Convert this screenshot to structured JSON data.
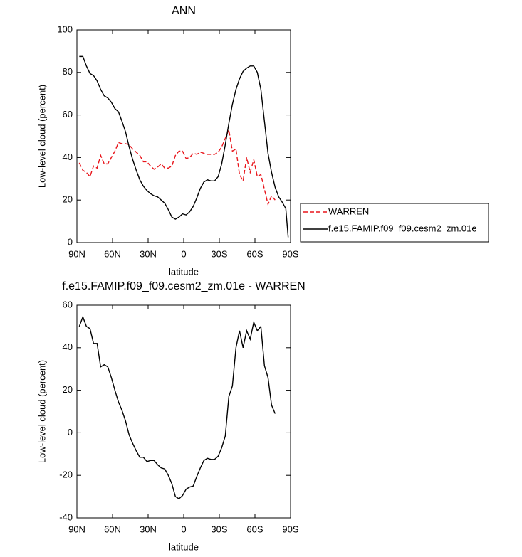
{
  "chart_data": [
    {
      "type": "line",
      "title": "ANN",
      "xlabel": "latitude",
      "ylabel": "Low-level cloud (percent)",
      "x": [
        88,
        85,
        82,
        79,
        76,
        73,
        70,
        67,
        64,
        61,
        58,
        55,
        52,
        49,
        46,
        43,
        40,
        37,
        34,
        31,
        28,
        25,
        22,
        19,
        16,
        13,
        10,
        7,
        4,
        1,
        -2,
        -5,
        -8,
        -11,
        -14,
        -17,
        -20,
        -23,
        -26,
        -29,
        -32,
        -35,
        -38,
        -41,
        -44,
        -47,
        -50,
        -53,
        -56,
        -59,
        -62,
        -65,
        -68,
        -71,
        -74,
        -77,
        -80,
        -83,
        -86,
        -88
      ],
      "series": [
        {
          "name": "WARREN",
          "color": "#e8151b",
          "linestyle": "dashed",
          "values": [
            37.5,
            34,
            33,
            31,
            36,
            35,
            41,
            37,
            37,
            40,
            43,
            47,
            46.5,
            46.5,
            46,
            44,
            42.5,
            41,
            38,
            38,
            36,
            34.5,
            35.5,
            37,
            35,
            35,
            36,
            41,
            43,
            43,
            39.5,
            40,
            42,
            41.5,
            42.5,
            42,
            41.5,
            41.5,
            41.5,
            42.5,
            45,
            49,
            53,
            43,
            44,
            32,
            29,
            40,
            33,
            39,
            31,
            32,
            25,
            18,
            22,
            20,
            null,
            null,
            null,
            null
          ]
        },
        {
          "name": "f.e15.FAMIP.f09_f09.cesm2_zm.01e",
          "color": "#000000",
          "linestyle": "solid",
          "values": [
            87.5,
            87.5,
            83,
            79.5,
            78.5,
            76,
            72,
            69,
            68,
            66,
            63,
            61.5,
            57,
            52,
            45,
            39,
            34,
            29.5,
            26.5,
            24.5,
            23,
            22,
            21.5,
            20,
            18.5,
            15.5,
            12,
            11,
            12,
            13.5,
            13,
            14.5,
            17,
            21,
            25.5,
            28.5,
            29.5,
            29,
            29,
            31,
            37,
            46,
            56,
            65,
            72,
            77,
            80.5,
            82,
            83,
            83,
            80,
            72,
            57,
            42,
            33,
            26,
            21.5,
            19,
            16,
            2.5
          ]
        }
      ],
      "xlim": [
        90,
        -90
      ],
      "xticks": [
        {
          "value": 90,
          "label": "90N"
        },
        {
          "value": 60,
          "label": "60N"
        },
        {
          "value": 30,
          "label": "30N"
        },
        0,
        {
          "value": -30,
          "label": "30S"
        },
        {
          "value": -60,
          "label": "60S"
        },
        {
          "value": -90,
          "label": "90S"
        }
      ],
      "ylim": [
        0,
        100
      ],
      "yticks": [
        0,
        20,
        40,
        60,
        80,
        100
      ],
      "legend": "right"
    },
    {
      "type": "line",
      "title": "f.e15.FAMIP.f09_f09.cesm2_zm.01e - WARREN",
      "xlabel": "latitude",
      "ylabel": "Low-level cloud (percent)",
      "x": [
        88,
        85,
        82,
        79,
        76,
        73,
        70,
        67,
        64,
        61,
        58,
        55,
        52,
        49,
        46,
        43,
        40,
        37,
        34,
        31,
        28,
        25,
        22,
        19,
        16,
        13,
        10,
        7,
        4,
        1,
        -2,
        -5,
        -8,
        -11,
        -14,
        -17,
        -20,
        -23,
        -26,
        -29,
        -32,
        -35,
        -38,
        -41,
        -44,
        -47,
        -50,
        -53,
        -56,
        -59,
        -62,
        -65,
        -68,
        -71,
        -74,
        -77
      ],
      "series": [
        {
          "color": "#000000",
          "linestyle": "solid",
          "values": [
            50,
            54.5,
            50,
            49,
            42,
            42,
            31,
            32,
            31,
            26,
            20,
            14.5,
            10.5,
            5.5,
            -1,
            -5,
            -8.5,
            -11.5,
            -11.5,
            -13.5,
            -13,
            -13,
            -15,
            -16.5,
            -17,
            -20,
            -24,
            -30,
            -31,
            -29.5,
            -26.5,
            -25.5,
            -25,
            -20.5,
            -16.5,
            -13,
            -12,
            -12.5,
            -12.5,
            -11,
            -7,
            -1.5,
            17,
            22,
            40,
            48,
            40,
            48,
            44,
            52,
            48,
            50,
            31.5,
            26,
            13,
            9
          ]
        }
      ],
      "xlim": [
        90,
        -90
      ],
      "xticks": [
        {
          "value": 90,
          "label": "90N"
        },
        {
          "value": 60,
          "label": "60N"
        },
        {
          "value": 30,
          "label": "30N"
        },
        0,
        {
          "value": -30,
          "label": "30S"
        },
        {
          "value": -60,
          "label": "60S"
        },
        {
          "value": -90,
          "label": "90S"
        }
      ],
      "ylim": [
        -40,
        60
      ],
      "yticks": [
        -40,
        -20,
        0,
        20,
        40,
        60
      ]
    }
  ]
}
